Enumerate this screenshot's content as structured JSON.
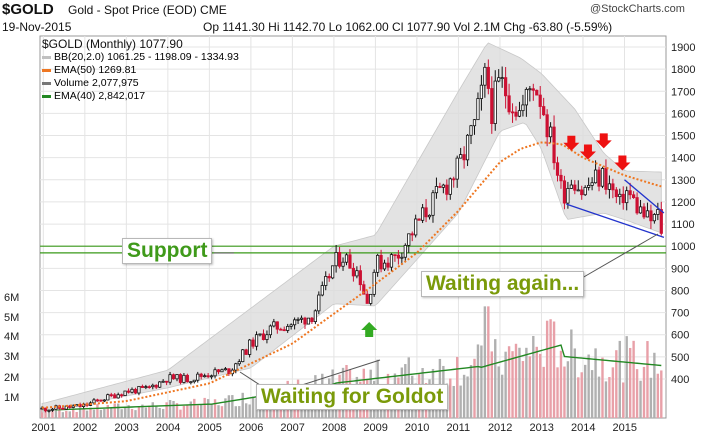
{
  "header": {
    "symbol": "$GOLD",
    "name": "Gold - Spot Price (EOD) CME",
    "source": "@StockCharts.com",
    "date": "19-Nov-2015",
    "stats": "Op 1141.30  Hi 1142.70  Lo 1062.00  Cl 1077.90  Vol 2.1M  Chg -63.80 (-5.59%)"
  },
  "legend": {
    "main": "$GOLD (Monthly) 1077.90",
    "bb": "BB(20,2.0) 1061.25 - 1198.09 - 1334.93",
    "ema50": "EMA(50) 1269.81",
    "volume": "Volume 2,077,975",
    "ema40": "EMA(40) 2,842,017"
  },
  "annotations": {
    "support": "Support",
    "waiting_again": "Waiting again...",
    "waiting_goldot": "Waiting for Goldot"
  },
  "colors": {
    "up": "#111111",
    "down": "#cc1133",
    "ema50": "#ee7722",
    "bb_fill": "#dcdcdc",
    "support_lines": "#3a9a1a",
    "channel": "#2233cc",
    "vol_up": "#b0b0b0",
    "vol_down": "#e8a0a8",
    "vol_ema": "#228822",
    "arrow_down": "#ee1111",
    "arrow_up": "#33aa22"
  },
  "chart_data": {
    "type": "candlestick",
    "frequency": "monthly",
    "x_ticks": [
      "2001",
      "2002",
      "2003",
      "2004",
      "2005",
      "2006",
      "2007",
      "2008",
      "2009",
      "2010",
      "2011",
      "2012",
      "2013",
      "2014",
      "2015"
    ],
    "y_ticks": [
      400,
      500,
      600,
      700,
      800,
      900,
      1000,
      1100,
      1200,
      1300,
      1400,
      1500,
      1600,
      1700,
      1800,
      1900
    ],
    "volume_ticks": [
      "1M",
      "2M",
      "3M",
      "4M",
      "5M",
      "6M"
    ],
    "close_points": [
      [
        2001.0,
        265
      ],
      [
        2001.5,
        270
      ],
      [
        2002.0,
        280
      ],
      [
        2002.5,
        315
      ],
      [
        2003.0,
        345
      ],
      [
        2003.5,
        355
      ],
      [
        2004.0,
        405
      ],
      [
        2004.5,
        400
      ],
      [
        2005.0,
        425
      ],
      [
        2005.5,
        440
      ],
      [
        2006.0,
        560
      ],
      [
        2006.5,
        630
      ],
      [
        2007.0,
        650
      ],
      [
        2007.5,
        690
      ],
      [
        2008.0,
        920
      ],
      [
        2008.2,
        960
      ],
      [
        2008.6,
        880
      ],
      [
        2008.8,
        740
      ],
      [
        2009.0,
        920
      ],
      [
        2009.5,
        950
      ],
      [
        2010.0,
        1100
      ],
      [
        2010.5,
        1230
      ],
      [
        2011.0,
        1350
      ],
      [
        2011.4,
        1550
      ],
      [
        2011.67,
        1780
      ],
      [
        2011.8,
        1620
      ],
      [
        2012.0,
        1740
      ],
      [
        2012.5,
        1600
      ],
      [
        2012.8,
        1750
      ],
      [
        2013.0,
        1660
      ],
      [
        2013.3,
        1420
      ],
      [
        2013.5,
        1230
      ],
      [
        2013.75,
        1320
      ],
      [
        2014.0,
        1240
      ],
      [
        2014.2,
        1290
      ],
      [
        2014.5,
        1320
      ],
      [
        2014.9,
        1180
      ],
      [
        2015.0,
        1260
      ],
      [
        2015.3,
        1180
      ],
      [
        2015.6,
        1110
      ],
      [
        2015.8,
        1140
      ],
      [
        2015.88,
        1078
      ]
    ],
    "ema50_points": [
      [
        2001.0,
        270
      ],
      [
        2003.0,
        300
      ],
      [
        2005.0,
        380
      ],
      [
        2007.0,
        560
      ],
      [
        2009.0,
        830
      ],
      [
        2010.0,
        970
      ],
      [
        2011.0,
        1160
      ],
      [
        2012.0,
        1380
      ],
      [
        2012.5,
        1440
      ],
      [
        2013.0,
        1470
      ],
      [
        2013.5,
        1460
      ],
      [
        2014.0,
        1400
      ],
      [
        2015.0,
        1320
      ],
      [
        2015.88,
        1270
      ]
    ],
    "bb_upper_points": [
      [
        2001.0,
        290
      ],
      [
        2004.0,
        440
      ],
      [
        2006.0,
        720
      ],
      [
        2008.0,
        1000
      ],
      [
        2009.0,
        1050
      ],
      [
        2011.0,
        1700
      ],
      [
        2011.7,
        1920
      ],
      [
        2012.5,
        1850
      ],
      [
        2013.0,
        1780
      ],
      [
        2013.8,
        1620
      ],
      [
        2014.5,
        1420
      ],
      [
        2015.0,
        1340
      ],
      [
        2015.88,
        1335
      ]
    ],
    "bb_lower_points": [
      [
        2001.0,
        250
      ],
      [
        2004.0,
        360
      ],
      [
        2006.0,
        450
      ],
      [
        2008.0,
        740
      ],
      [
        2009.0,
        730
      ],
      [
        2011.0,
        1150
      ],
      [
        2012.0,
        1520
      ],
      [
        2012.6,
        1560
      ],
      [
        2013.0,
        1440
      ],
      [
        2013.6,
        1120
      ],
      [
        2014.5,
        1150
      ],
      [
        2015.0,
        1120
      ],
      [
        2015.88,
        1061
      ]
    ],
    "support_lines": [
      970,
      1000
    ],
    "channel_upper": [
      [
        2015.0,
        1300
      ],
      [
        2015.95,
        1150
      ]
    ],
    "channel_lower": [
      [
        2013.6,
        1190
      ],
      [
        2015.95,
        1040
      ]
    ],
    "down_arrows": [
      2013.72,
      2014.12,
      2014.5,
      2014.95
    ],
    "up_arrow": 2008.85,
    "volume_last": "2,077,975"
  }
}
